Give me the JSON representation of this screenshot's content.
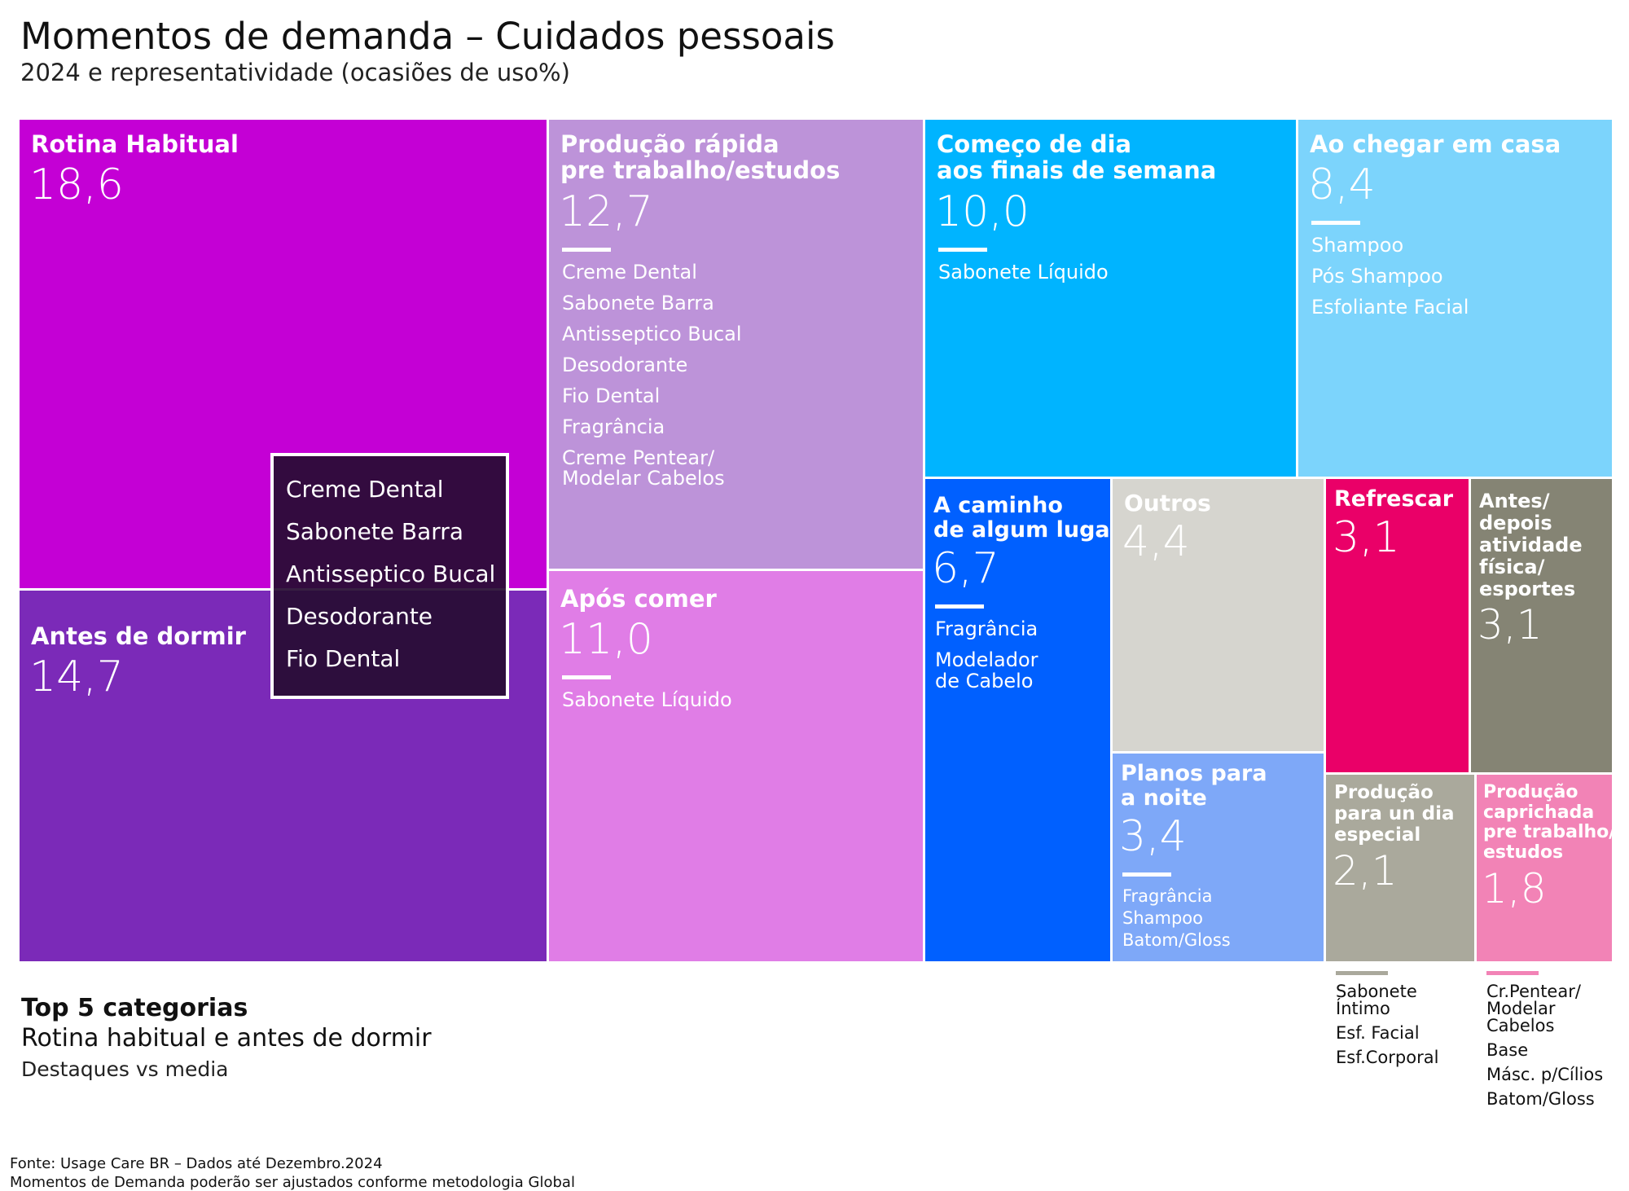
{
  "title": "Momentos de demanda – Cuidados pessoais",
  "subtitle": "2024 e representatividade (ocasiões de uso%)",
  "chart_data": {
    "type": "treemap",
    "title": "Momentos de demanda – Cuidados pessoais",
    "subtitle": "2024 e representatividade (ocasiões de uso%)",
    "series": [
      {
        "name": "Rotina Habitual",
        "value": 18.6,
        "value_label": "18,6",
        "color": "#C400D5",
        "categories": []
      },
      {
        "name": "Antes de dormir",
        "value": 14.7,
        "value_label": "14,7",
        "color": "#7B2AB8",
        "categories": []
      },
      {
        "name": "Produção rápida\npre trabalho/estudos",
        "value": 12.7,
        "value_label": "12,7",
        "color": "#BD93D9",
        "categories": [
          "Creme Dental",
          "Sabonete Barra",
          "Antisseptico Bucal",
          "Desodorante",
          "Fio Dental",
          "Fragrância",
          "Creme Pentear/\nModelar Cabelos"
        ]
      },
      {
        "name": "Após comer",
        "value": 11.0,
        "value_label": "11,0",
        "color": "#E07DE6",
        "categories": [
          "Sabonete Líquido"
        ]
      },
      {
        "name": "Começo de dia\naos finais de semana",
        "value": 10.0,
        "value_label": "10,0",
        "color": "#00B4FF",
        "categories": [
          "Sabonete Líquido"
        ]
      },
      {
        "name": "Ao chegar em casa",
        "value": 8.4,
        "value_label": "8,4",
        "color": "#7CD4FC",
        "categories": [
          "Shampoo",
          "Pós Shampoo",
          "Esfoliante Facial"
        ]
      },
      {
        "name": "A caminho\nde algum lugar",
        "value": 6.7,
        "value_label": "6,7",
        "color": "#0060FF",
        "categories": [
          "Fragrância",
          "Modelador\nde Cabelo"
        ]
      },
      {
        "name": "Outros",
        "value": 4.4,
        "value_label": "4,4",
        "color": "#D6D5CF",
        "categories": []
      },
      {
        "name": "Planos para\na noite",
        "value": 3.4,
        "value_label": "3,4",
        "color": "#7EA8F8",
        "categories": [
          "Fragrância",
          "Shampoo",
          "Batom/Gloss"
        ]
      },
      {
        "name": "Refrescar",
        "value": 3.1,
        "value_label": "3,1",
        "color": "#EA0068",
        "categories": []
      },
      {
        "name": "Antes/\ndepois\natividade\nfísica/\nesportes",
        "value": 3.1,
        "value_label": "3,1",
        "color": "#858474",
        "categories": []
      },
      {
        "name": "Produção\npara un dia\nespecial",
        "value": 2.1,
        "value_label": "2,1",
        "color": "#AAA99C",
        "categories": [
          "Sabonete\nÍntimo",
          "Esf. Facial",
          "Esf.Corporal"
        ]
      },
      {
        "name": "Produção\ncaprichada\npre trabalho/\nestudos",
        "value": 1.8,
        "value_label": "1,8",
        "color": "#F283B6",
        "categories": [
          "Cr.Pentear/\nModelar\nCabelos",
          "Base",
          "Másc. p/Cílios",
          "Batom/Gloss"
        ]
      }
    ],
    "top5_categories_callout": [
      "Creme Dental",
      "Sabonete Barra",
      "Antisseptico Bucal",
      "Desodorante",
      "Fio Dental"
    ]
  },
  "legend": {
    "title": "Top 5 categorias",
    "subtitle": "Rotina habitual e antes de dormir",
    "note": "Destaques vs media"
  },
  "source": {
    "line1": "Fonte: Usage Care BR – Dados até Dezembro.2024",
    "line2": "Momentos de Demanda poderão ser ajustados conforme metodologia Global"
  }
}
